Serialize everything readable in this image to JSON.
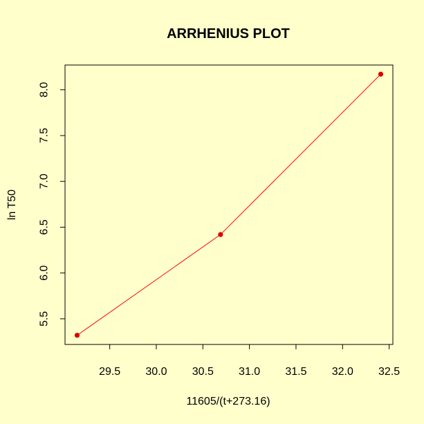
{
  "chart_data": {
    "type": "line",
    "title": "ARRHENIUS PLOT",
    "xlabel": "11605/(t+273.16)",
    "ylabel": "ln T50",
    "x_ticks": [
      29.5,
      30.0,
      30.5,
      31.0,
      31.5,
      32.0,
      32.5
    ],
    "x_tick_labels": [
      "29.5",
      "30.0",
      "30.5",
      "31.0",
      "31.5",
      "32.0",
      "32.5"
    ],
    "y_ticks": [
      5.5,
      6.0,
      6.5,
      7.0,
      7.5,
      8.0
    ],
    "y_tick_labels": [
      "5.5",
      "6.0",
      "6.5",
      "7.0",
      "7.5",
      "8.0"
    ],
    "xlim": [
      29.02,
      32.54
    ],
    "ylim": [
      5.22,
      8.27
    ],
    "grid": false,
    "series": [
      {
        "x": [
          29.15,
          30.69,
          32.41
        ],
        "y": [
          5.32,
          6.42,
          8.17
        ],
        "color": "#FF0000",
        "marker_color": "#DD0000"
      }
    ],
    "colors": {
      "background": "#FFFFCC",
      "axis": "#000000"
    }
  }
}
